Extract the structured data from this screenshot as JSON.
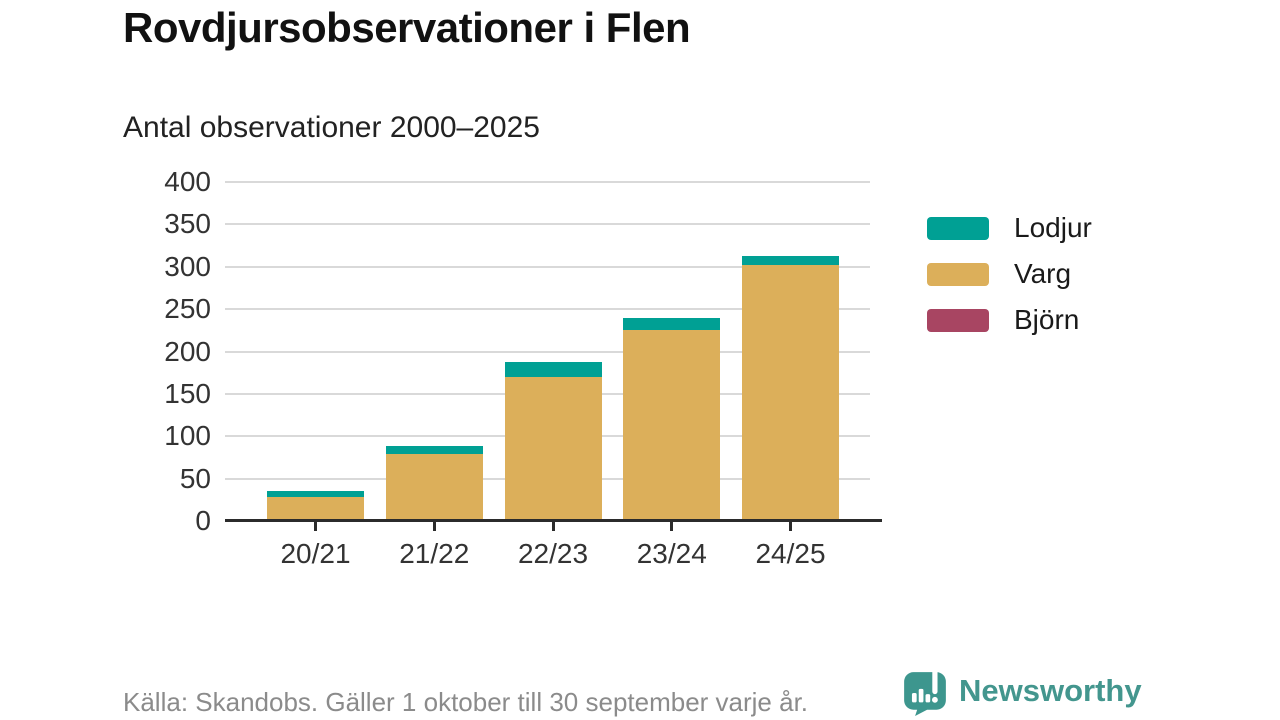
{
  "header": {
    "title": "Rovdjursobservationer i Flen",
    "subtitle": "Antal observationer 2000–2025"
  },
  "chart_data": {
    "type": "bar",
    "stacked": true,
    "title": "Rovdjursobservationer i Flen",
    "subtitle": "Antal observationer 2000–2025",
    "categories": [
      "20/21",
      "21/22",
      "22/23",
      "23/24",
      "24/25"
    ],
    "series": [
      {
        "name": "Lodjur",
        "color": "#00a094",
        "values": [
          8,
          10,
          18,
          14,
          11
        ]
      },
      {
        "name": "Varg",
        "color": "#dcaf5a",
        "values": [
          28,
          79,
          170,
          225,
          302
        ]
      },
      {
        "name": "Björn",
        "color": "#a84562",
        "values": [
          0,
          0,
          0,
          0,
          0
        ]
      }
    ],
    "stack_order_bottom_to_top": [
      "Björn",
      "Varg",
      "Lodjur"
    ],
    "totals": [
      36,
      89,
      188,
      239,
      313
    ],
    "ylim": [
      0,
      400
    ],
    "yticks": [
      0,
      50,
      100,
      150,
      200,
      250,
      300,
      350,
      400
    ],
    "grid": true,
    "legend_position": "right",
    "xlabel": "",
    "ylabel": ""
  },
  "legend": {
    "items": [
      {
        "label": "Lodjur",
        "color": "#00a094"
      },
      {
        "label": "Varg",
        "color": "#dcaf5a"
      },
      {
        "label": "Björn",
        "color": "#a84562"
      }
    ]
  },
  "footer": {
    "source": "Källa: Skandobs. Gäller 1 oktober till 30 september varje år.",
    "brand": "Newsworthy"
  },
  "colors": {
    "axis": "#2b2b2b",
    "gridline": "#d9d9d9",
    "title": "#111111",
    "text": "#333333",
    "muted": "#8b8b8b",
    "brand_teal": "#43968e"
  }
}
